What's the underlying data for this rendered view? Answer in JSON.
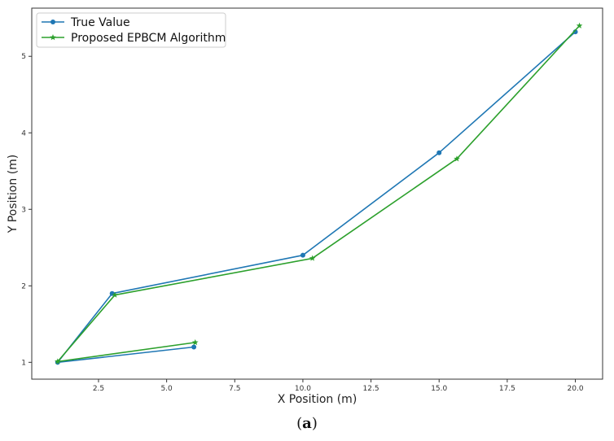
{
  "caption": {
    "open": "(",
    "letter": "a",
    "close": ")"
  },
  "chart_data": {
    "type": "line",
    "title": "",
    "xlabel": "X Position (m)",
    "ylabel": "Y Position (m)",
    "xlim": [
      0.05,
      21.0
    ],
    "ylim": [
      0.78,
      5.63
    ],
    "x_ticks": [
      2.5,
      5.0,
      7.5,
      10.0,
      12.5,
      15.0,
      17.5,
      20.0
    ],
    "x_tick_labels": [
      "2.5",
      "5.0",
      "7.5",
      "10.0",
      "12.5",
      "15.0",
      "17.5",
      "20.0"
    ],
    "y_ticks": [
      1,
      2,
      3,
      4,
      5
    ],
    "y_tick_labels": [
      "1",
      "2",
      "3",
      "4",
      "5"
    ],
    "grid": false,
    "legend_position": "upper-left",
    "series": [
      {
        "name": "True Value",
        "color": "#1f77b4",
        "marker": "circle",
        "x": [
          6.0,
          1.0,
          3.0,
          10.0,
          15.0,
          20.0
        ],
        "y": [
          1.2,
          1.0,
          1.9,
          2.4,
          3.74,
          5.32
        ]
      },
      {
        "name": "Proposed EPBCM Algorithm",
        "color": "#2ca02c",
        "marker": "star",
        "x": [
          6.05,
          1.0,
          3.1,
          10.35,
          15.65,
          20.15
        ],
        "y": [
          1.26,
          1.01,
          1.88,
          2.36,
          3.66,
          5.4
        ]
      }
    ]
  }
}
